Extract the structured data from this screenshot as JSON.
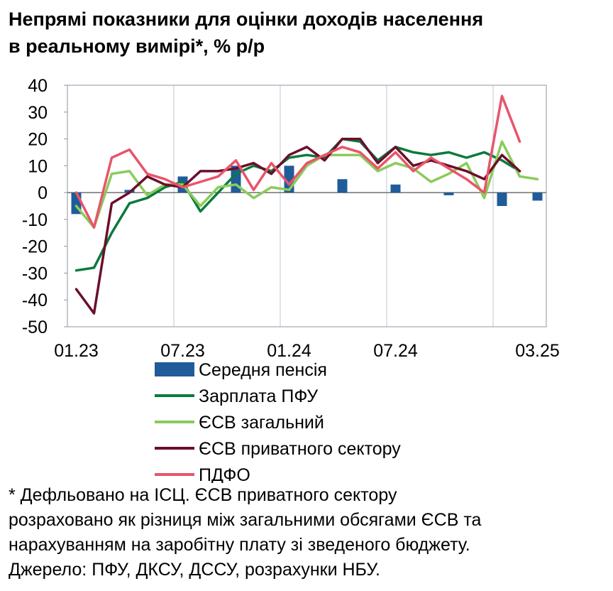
{
  "title_line1": "Непрямі показники для оцінки доходів населення",
  "title_line2": "в реальному вимірі*, % р/р",
  "notes": [
    "* Дефльовано на ІСЦ. ЄСВ приватного сектору",
    "розраховано як різниця між загальними обсягами ЄСВ та",
    "нарахуванням на заробітну плату зі зведеного бюджету.",
    "Джерело: ПФУ, ДКСУ, ДССУ, розрахунки НБУ."
  ],
  "chart_data": {
    "type": "line",
    "categories": [
      "01.23",
      "02.23",
      "03.23",
      "04.23",
      "05.23",
      "06.23",
      "07.23",
      "08.23",
      "09.23",
      "10.23",
      "11.23",
      "12.23",
      "01.24",
      "02.24",
      "03.24",
      "04.24",
      "05.24",
      "06.24",
      "07.24",
      "08.24",
      "09.24",
      "10.24",
      "11.24",
      "12.24",
      "01.25",
      "02.25",
      "03.25"
    ],
    "x_tick_labels": [
      "01.23",
      "07.23",
      "01.24",
      "07.24",
      "03.25"
    ],
    "x_tick_indices": [
      0,
      6,
      12,
      18,
      26
    ],
    "ylim": [
      -50,
      40
    ],
    "yticks": [
      -50,
      -40,
      -30,
      -20,
      -10,
      0,
      10,
      20,
      30,
      40
    ],
    "xlabel": "",
    "ylabel": "",
    "grid": false,
    "legend_position": "bottom",
    "series": [
      {
        "name": "Середня пенсія",
        "kind": "bar",
        "color": "#1F5C99",
        "values": [
          -8,
          null,
          null,
          1,
          null,
          null,
          6,
          null,
          null,
          10,
          null,
          null,
          10,
          null,
          null,
          5,
          null,
          null,
          3,
          null,
          null,
          -1,
          null,
          null,
          -5,
          null,
          -3
        ]
      },
      {
        "name": "Зарплата ПФУ",
        "kind": "line",
        "color": "#0B7A3E",
        "values": [
          -29,
          -28,
          -15,
          -4,
          -2,
          2,
          4,
          -7,
          0,
          7,
          10,
          8,
          13,
          14,
          13,
          20,
          19,
          12,
          17,
          15,
          14,
          15,
          13,
          15,
          12,
          8,
          null
        ]
      },
      {
        "name": "ЄСВ загальний",
        "kind": "line",
        "color": "#8ACB5A",
        "values": [
          -5,
          -13,
          7,
          8,
          -1,
          3,
          3,
          -5,
          2,
          3,
          -2,
          2,
          1,
          10,
          14,
          14,
          14,
          8,
          11,
          9,
          4,
          7,
          11,
          -2,
          19,
          6,
          5
        ]
      },
      {
        "name": "ЄСВ приватного сектору",
        "kind": "line",
        "color": "#6B0F2A",
        "values": [
          -36,
          -45,
          -4,
          0,
          6,
          3,
          2,
          8,
          8,
          9,
          11,
          7,
          14,
          17,
          12,
          20,
          20,
          11,
          17,
          10,
          12,
          10,
          8,
          5,
          14,
          8,
          null
        ]
      },
      {
        "name": "ПДФО",
        "kind": "line",
        "color": "#E8546A",
        "values": [
          0,
          -13,
          13,
          16,
          7,
          5,
          2,
          4,
          6,
          12,
          1,
          11,
          3,
          11,
          14,
          17,
          15,
          9,
          15,
          8,
          13,
          9,
          5,
          0,
          36,
          19,
          null
        ]
      }
    ]
  }
}
